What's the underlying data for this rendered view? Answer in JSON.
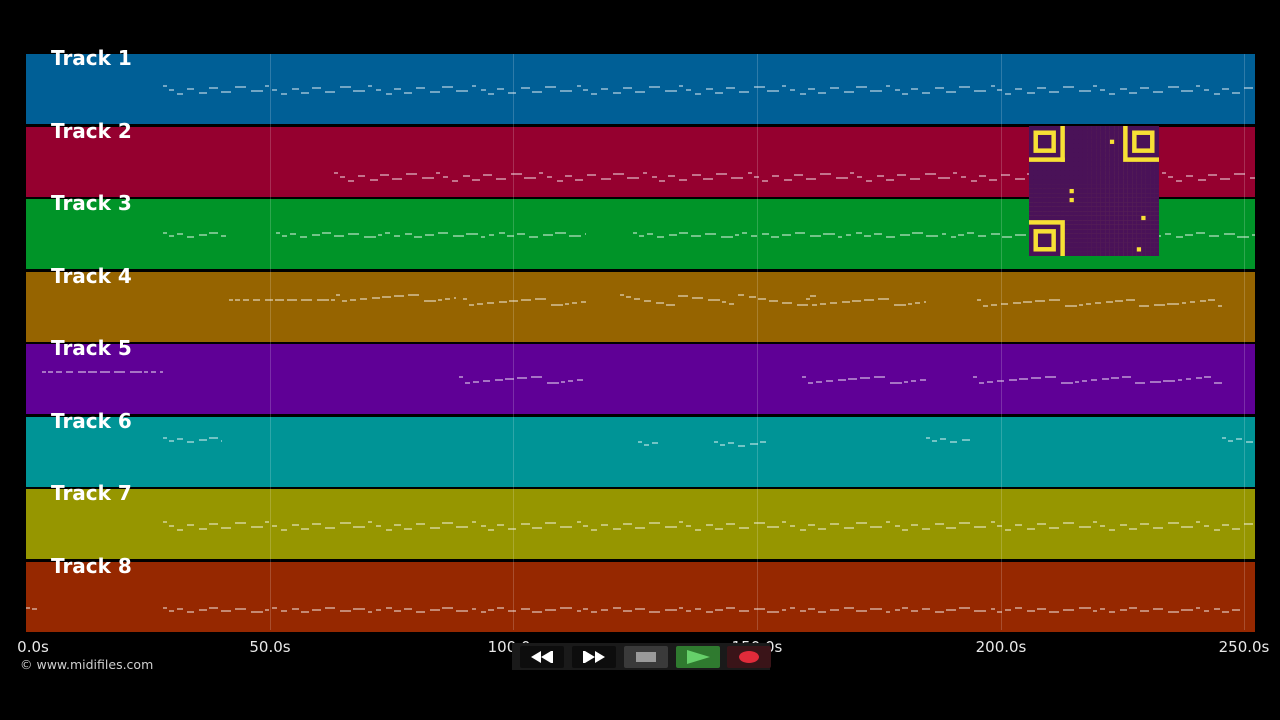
{
  "tracks": [
    {
      "label": "Track 1",
      "color": "#005f96"
    },
    {
      "label": "Track 2",
      "color": "#95002f"
    },
    {
      "label": "Track 3",
      "color": "#009428"
    },
    {
      "label": "Track 4",
      "color": "#966400"
    },
    {
      "label": "Track 5",
      "color": "#5f0096"
    },
    {
      "label": "Track 6",
      "color": "#009496"
    },
    {
      "label": "Track 7",
      "color": "#969600"
    },
    {
      "label": "Track 8",
      "color": "#962800"
    }
  ],
  "timeline": {
    "ticks": [
      "0.0s",
      "50.0s",
      "100.0s",
      "150.0s",
      "200.0s",
      "250.0s"
    ]
  },
  "copyright": "© www.midifiles.com",
  "transport": {
    "rewind_icon": "rewind-icon",
    "fast_forward_icon": "fast-forward-icon",
    "stop_icon": "stop-icon",
    "play_icon": "play-icon",
    "record_icon": "record-icon",
    "play_color": "#2f7a2f",
    "record_color": "#e02b3a"
  },
  "qr_color_bg": "#f7e035",
  "qr_color_fg": "#4a1258"
}
